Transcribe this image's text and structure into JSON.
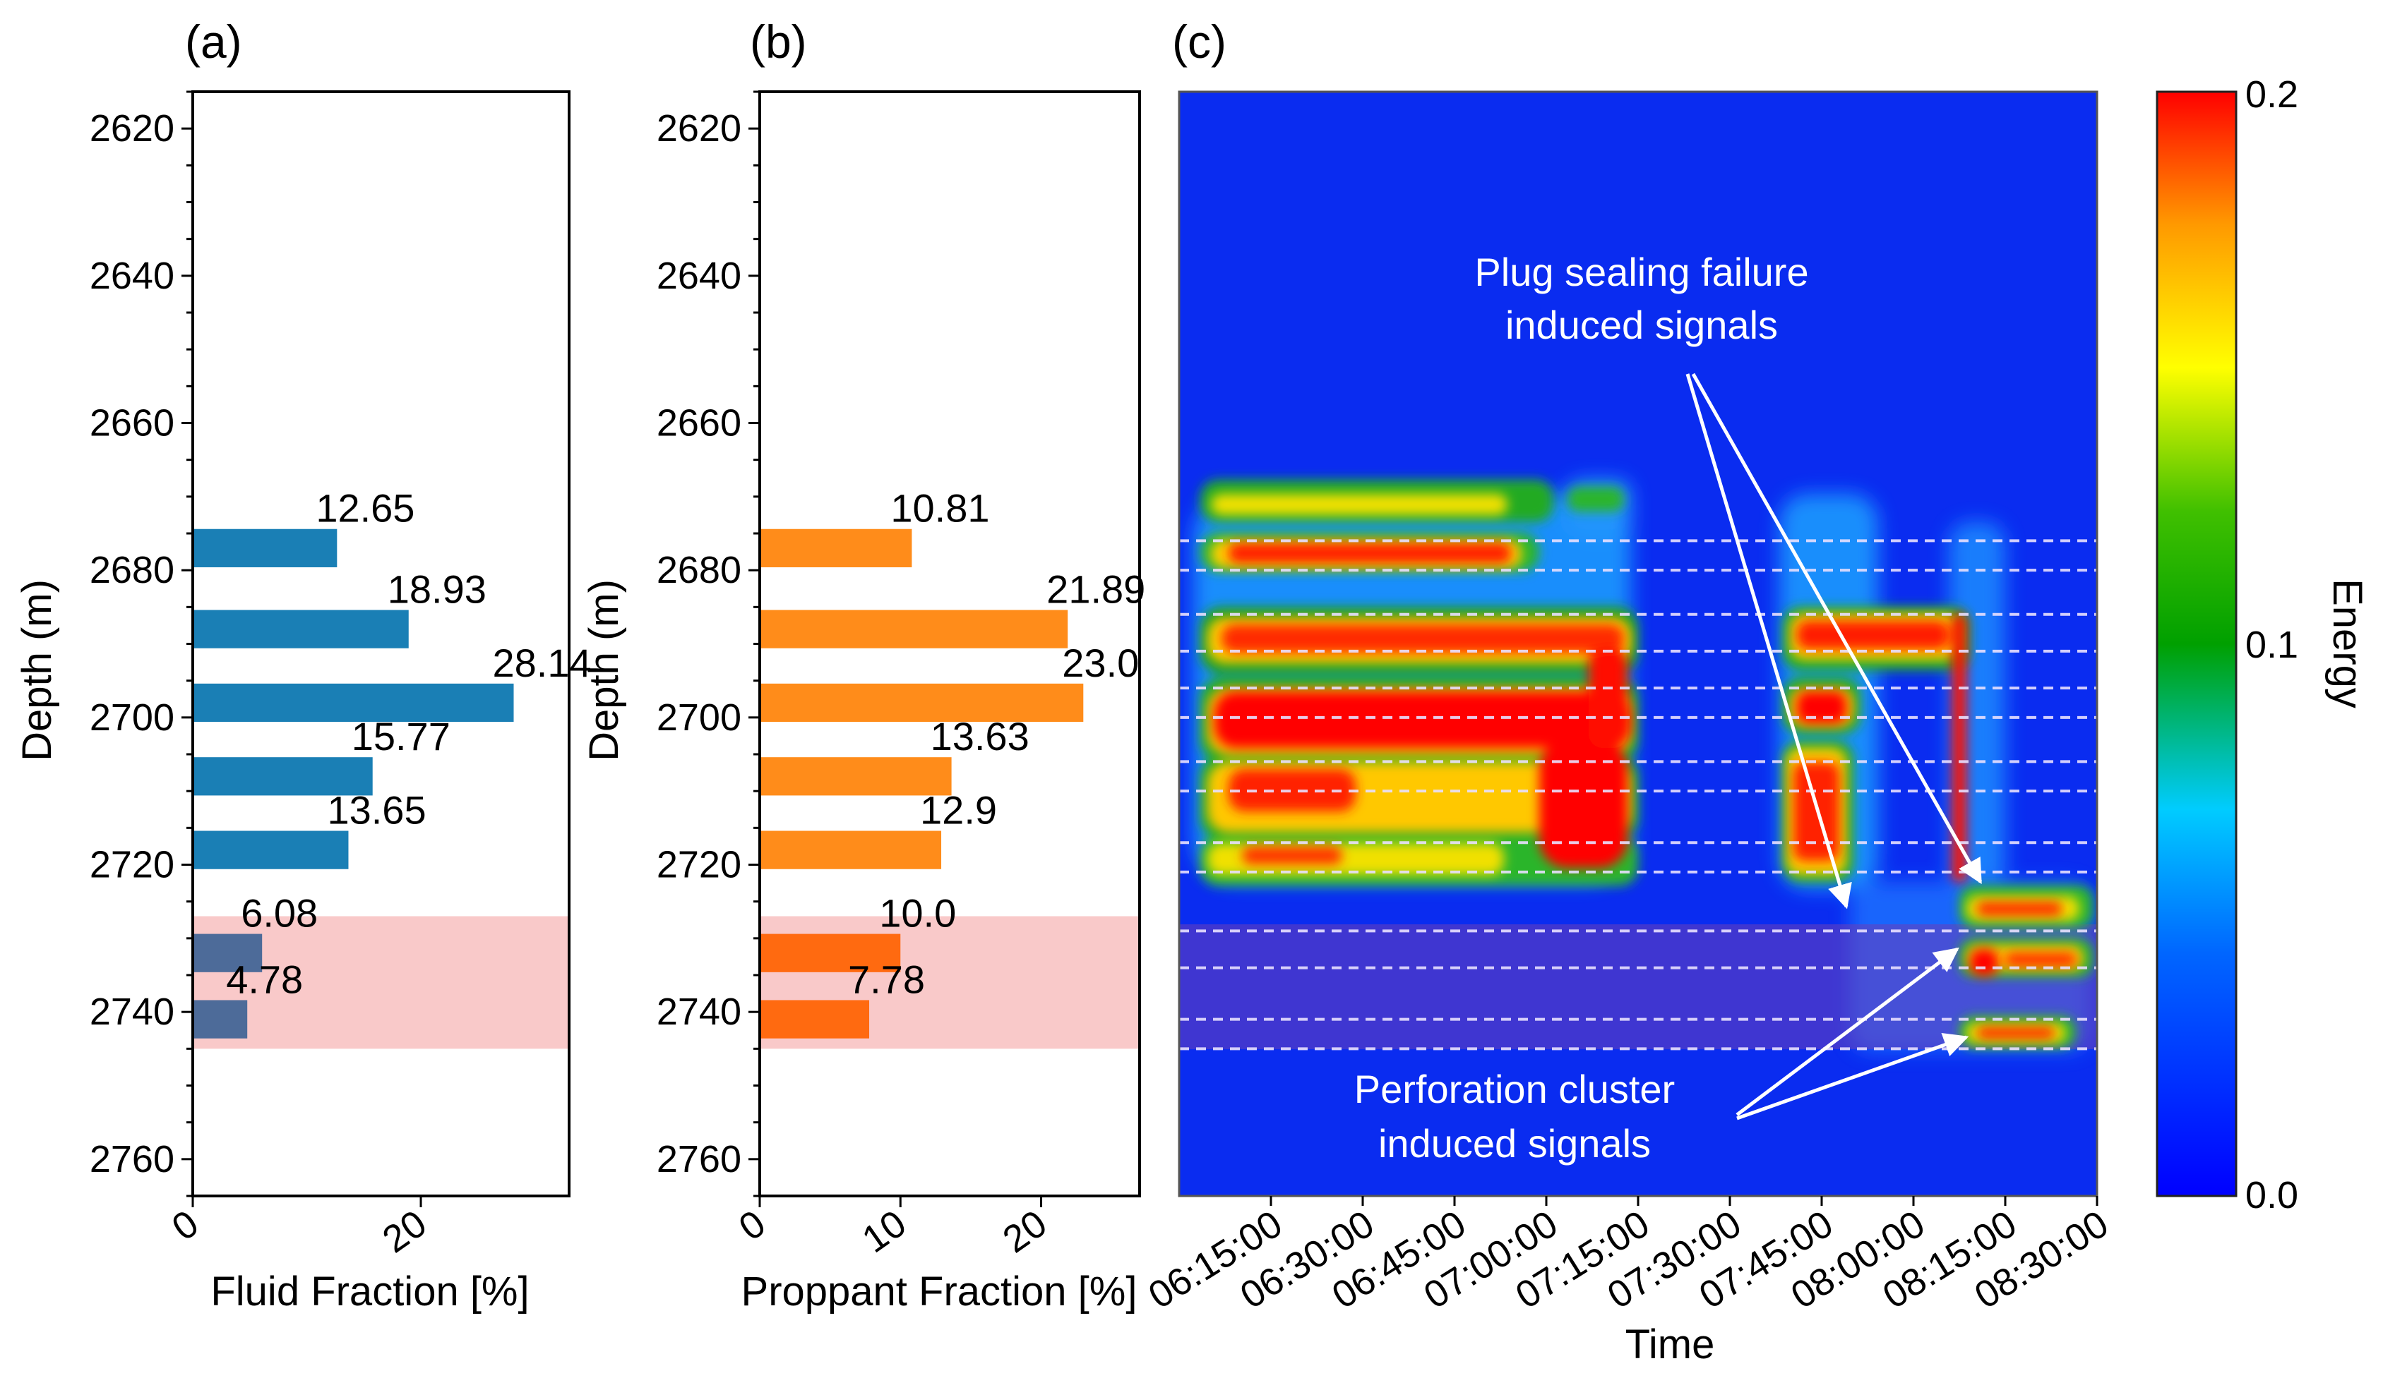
{
  "figure": {
    "panel_labels": [
      "(a)",
      "(b)",
      "(c)"
    ]
  },
  "chart_data": [
    {
      "type": "bar",
      "orientation": "horizontal",
      "panel": "(a)",
      "xlabel": "Fluid Fraction [%]",
      "ylabel": "Depth (m)",
      "xlim": [
        0,
        33
      ],
      "ylim": [
        2620,
        2760
      ],
      "y_display_range": [
        2615,
        2765
      ],
      "x_ticks": [
        0,
        20
      ],
      "y_ticks": [
        2620,
        2640,
        2660,
        2680,
        2700,
        2720,
        2740,
        2760
      ],
      "bars": [
        {
          "depth": 2677,
          "value": 12.65,
          "label": "12.65",
          "highlighted": false
        },
        {
          "depth": 2688,
          "value": 18.93,
          "label": "18.93",
          "highlighted": false
        },
        {
          "depth": 2698,
          "value": 28.14,
          "label": "28.14",
          "highlighted": false
        },
        {
          "depth": 2708,
          "value": 15.77,
          "label": "15.77",
          "highlighted": false
        },
        {
          "depth": 2718,
          "value": 13.65,
          "label": "13.65",
          "highlighted": false
        },
        {
          "depth": 2732,
          "value": 6.08,
          "label": "6.08",
          "highlighted": true
        },
        {
          "depth": 2741,
          "value": 4.78,
          "label": "4.78",
          "highlighted": true
        }
      ],
      "highlight_depth_range": [
        2727,
        2745
      ],
      "colors": {
        "bar": "#1a7fb5",
        "bar_highlighted": "#4d6b99",
        "highlight": "#f9c9c9"
      }
    },
    {
      "type": "bar",
      "orientation": "horizontal",
      "panel": "(b)",
      "xlabel": "Proppant Fraction [%]",
      "ylabel": "Depth (m)",
      "xlim": [
        0,
        27
      ],
      "ylim": [
        2620,
        2760
      ],
      "y_display_range": [
        2615,
        2765
      ],
      "x_ticks": [
        0,
        10,
        20
      ],
      "y_ticks": [
        2620,
        2640,
        2660,
        2680,
        2700,
        2720,
        2740,
        2760
      ],
      "bars": [
        {
          "depth": 2677,
          "value": 10.81,
          "label": "10.81",
          "highlighted": false
        },
        {
          "depth": 2688,
          "value": 21.89,
          "label": "21.89",
          "highlighted": false
        },
        {
          "depth": 2698,
          "value": 23.0,
          "label": "23.0",
          "highlighted": false
        },
        {
          "depth": 2708,
          "value": 13.63,
          "label": "13.63",
          "highlighted": false
        },
        {
          "depth": 2718,
          "value": 12.9,
          "label": "12.9",
          "highlighted": false
        },
        {
          "depth": 2732,
          "value": 10.0,
          "label": "10.0",
          "highlighted": true
        },
        {
          "depth": 2741,
          "value": 7.78,
          "label": "7.78",
          "highlighted": true
        }
      ],
      "highlight_depth_range": [
        2727,
        2745
      ],
      "colors": {
        "bar": "#ff8c1a",
        "bar_highlighted": "#ff6a10",
        "highlight": "#f9c9c9"
      }
    },
    {
      "type": "heatmap",
      "panel": "(c)",
      "xlabel": "Time",
      "x_ticks": [
        "06:15:00",
        "06:30:00",
        "06:45:00",
        "07:00:00",
        "07:15:00",
        "07:30:00",
        "07:45:00",
        "08:00:00",
        "08:15:00",
        "08:30:00"
      ],
      "x_range_minutes": [
        360,
        510
      ],
      "y_range_depth": [
        2615,
        2765
      ],
      "colorbar": {
        "label": "Energy",
        "min": 0.0,
        "max": 0.2,
        "ticks": [
          "0.0",
          "0.1",
          "0.2"
        ]
      },
      "dashed_lines_depth": [
        2676,
        2680,
        2686,
        2691,
        2696,
        2700,
        2706,
        2710,
        2717,
        2721,
        2729,
        2734,
        2741,
        2745
      ],
      "purple_band_depth": [
        2729,
        2745
      ],
      "annotations": [
        {
          "text": [
            "Plug sealing failure",
            "induced signals"
          ]
        },
        {
          "text": [
            "Perforation cluster",
            "induced signals"
          ]
        }
      ],
      "colors": {
        "low": "#0000ff",
        "mid": "#00aa00",
        "high": "#ff0000",
        "purple_band": "#6b3fb8"
      }
    }
  ]
}
